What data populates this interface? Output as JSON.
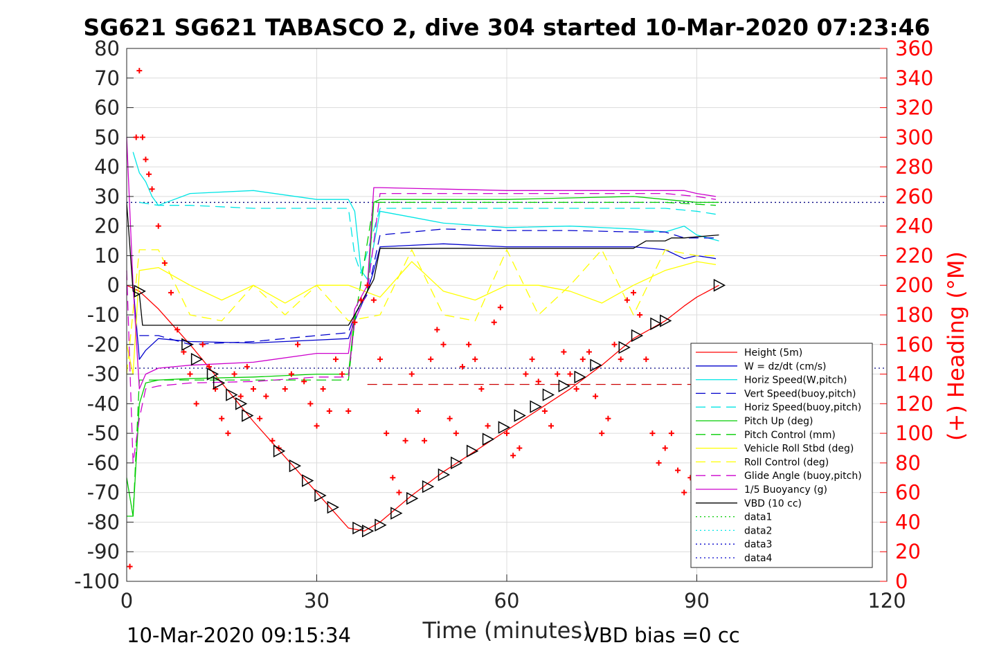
{
  "chart_data": {
    "type": "line",
    "title": "SG621 SG621 TABASCO 2, dive 304 started 10-Mar-2020 07:23:46",
    "xlabel": "Time (minutes)",
    "ylabel": "",
    "y2label": "(+) Heading (°M)",
    "xlim": [
      0,
      120
    ],
    "ylim": [
      -100,
      80
    ],
    "y2lim": [
      0,
      360
    ],
    "xticks": [
      "0",
      "30",
      "60",
      "90",
      "120"
    ],
    "yticks": [
      "80",
      "70",
      "60",
      "50",
      "40",
      "30",
      "20",
      "10",
      "0",
      "-10",
      "-20",
      "-30",
      "-40",
      "-50",
      "-60",
      "-70",
      "-80",
      "-90",
      "-100"
    ],
    "y2ticks": [
      "360",
      "340",
      "320",
      "300",
      "280",
      "260",
      "240",
      "220",
      "200",
      "180",
      "160",
      "140",
      "120",
      "100",
      "80",
      "60",
      "40",
      "20",
      "0"
    ],
    "grid": true,
    "legend_position": "bottom-right",
    "footer_left": "10-Mar-2020 09:15:34",
    "footer_right": "VBD bias =0 cc",
    "series": [
      {
        "name": "Height (5m)",
        "color": "#ff0000",
        "style": "solid",
        "x": [
          0,
          2,
          5,
          10,
          15,
          20,
          25,
          30,
          35,
          37.5,
          40,
          45,
          50,
          55,
          60,
          65,
          70,
          75,
          80,
          85,
          88,
          90,
          93.5
        ],
        "y": [
          0,
          -2,
          -8,
          -20,
          -33,
          -46,
          -58,
          -70,
          -82,
          -83,
          -80,
          -71,
          -63,
          -56,
          -49,
          -42,
          -35,
          -27,
          -18,
          -12,
          -7,
          -4,
          0
        ]
      },
      {
        "name": "W = dz/dt (cm/s)",
        "color": "#0000cc",
        "style": "solid",
        "x": [
          1,
          2,
          3,
          5,
          10,
          20,
          30,
          35,
          36,
          38,
          39,
          40,
          50,
          60,
          70,
          80,
          85,
          88,
          90,
          93
        ],
        "y": [
          0,
          -25,
          -22,
          -18,
          -19,
          -19.5,
          -18.5,
          -18,
          -12,
          -2,
          5,
          13,
          14,
          13,
          13,
          13,
          12,
          9,
          10,
          9
        ]
      },
      {
        "name": "Horiz Speed(W,pitch)",
        "color": "#00e5e5",
        "style": "solid",
        "x": [
          1,
          2,
          3,
          4,
          5,
          10,
          20,
          30,
          35,
          36,
          37,
          38,
          40,
          45,
          50,
          60,
          70,
          80,
          85,
          88,
          90,
          93.5
        ],
        "y": [
          45,
          38,
          35,
          30,
          27,
          31,
          32,
          29,
          29,
          25,
          5,
          2,
          25,
          23,
          21,
          19.5,
          20,
          19,
          18,
          20,
          17,
          15
        ]
      },
      {
        "name": "Vert Speed(buoy,pitch)",
        "color": "#0000cc",
        "style": "dashed",
        "x": [
          2,
          5,
          10,
          20,
          30,
          35,
          36,
          38,
          40,
          50,
          60,
          70,
          80,
          85,
          88,
          93
        ],
        "y": [
          -17,
          -17,
          -20,
          -19,
          -17,
          -16,
          -10,
          -3,
          17,
          19,
          18.5,
          18.5,
          18,
          18,
          16,
          16
        ]
      },
      {
        "name": "Horiz Speed(buoy,pitch)",
        "color": "#00e5e5",
        "style": "dashed",
        "x": [
          2,
          5,
          10,
          20,
          30,
          35,
          36,
          37,
          40,
          50,
          60,
          70,
          80,
          85,
          90,
          93
        ],
        "y": [
          28,
          27,
          27,
          26,
          26,
          26,
          10,
          4,
          26,
          26,
          26,
          26,
          26,
          26,
          25,
          24
        ]
      },
      {
        "name": "Pitch Up (deg)",
        "color": "#00cc00",
        "style": "solid",
        "x": [
          0,
          1,
          2,
          3,
          5,
          10,
          20,
          30,
          35,
          36,
          38,
          39,
          40,
          50,
          60,
          70,
          80,
          85,
          90,
          93.5
        ],
        "y": [
          -65,
          -78,
          -40,
          -33,
          -32,
          -31.5,
          -31,
          -30,
          -30,
          -10,
          -2,
          28,
          29,
          29,
          29,
          29.5,
          30,
          29,
          28,
          28
        ]
      },
      {
        "name": "Pitch Control (mm)",
        "color": "#00cc00",
        "style": "dashed",
        "x": [
          0,
          1,
          2,
          3,
          10,
          20,
          35,
          36,
          39,
          40,
          50,
          60,
          70,
          80,
          85,
          93
        ],
        "y": [
          -78,
          -78,
          -32,
          -32,
          -32,
          -32,
          -32,
          -12,
          28,
          28,
          28,
          28,
          28,
          28,
          28,
          27
        ]
      },
      {
        "name": "Vehicle Roll Stbd (deg)",
        "color": "#ffff00",
        "style": "solid",
        "x": [
          0,
          1,
          2,
          5,
          10,
          15,
          20,
          25,
          30,
          35,
          40,
          45,
          50,
          55,
          60,
          65,
          70,
          75,
          80,
          85,
          90,
          93
        ],
        "y": [
          -20,
          -30,
          5,
          6,
          0,
          -5,
          0,
          -6,
          0,
          0,
          -4,
          8,
          -2,
          -5,
          0,
          0,
          -2,
          -6,
          0,
          5,
          8,
          7
        ]
      },
      {
        "name": "Roll Control (deg)",
        "color": "#ffff00",
        "style": "dashed",
        "x": [
          0,
          2,
          5,
          10,
          15,
          20,
          25,
          30,
          35,
          40,
          45,
          50,
          55,
          60,
          65,
          70,
          75,
          80,
          85,
          90,
          93
        ],
        "y": [
          -30,
          12,
          12,
          -10,
          -12,
          0,
          -10,
          0,
          -12,
          -10,
          12,
          -10,
          -12,
          12,
          -10,
          0,
          12,
          -10,
          12,
          10,
          10
        ]
      },
      {
        "name": "Glide Angle (buoy,pitch)",
        "color": "#cc00cc",
        "style": "dashed",
        "x": [
          0,
          1,
          2,
          3,
          5,
          10,
          20,
          30,
          35,
          36,
          38,
          40,
          50,
          60,
          70,
          80,
          85,
          90,
          93
        ],
        "y": [
          5,
          -60,
          -45,
          -35,
          -34,
          -33,
          -32.5,
          -31,
          -31,
          -12,
          -2,
          31,
          31,
          31,
          31,
          31,
          31,
          30,
          29
        ]
      },
      {
        "name": "1/5 Buoyancy (g)",
        "color": "#cc00cc",
        "style": "solid",
        "x": [
          0,
          1,
          2,
          3,
          5,
          10,
          20,
          30,
          35,
          36,
          38,
          39,
          40,
          50,
          60,
          70,
          80,
          85,
          88,
          90,
          93
        ],
        "y": [
          50,
          0,
          -35,
          -30,
          -28,
          -27,
          -26,
          -23,
          -23,
          -8,
          0,
          33,
          33,
          32.5,
          32,
          32,
          32,
          32,
          32,
          31,
          30
        ]
      },
      {
        "name": "VBD (10 cc)",
        "color": "#000000",
        "style": "solid",
        "x": [
          0,
          1,
          2,
          2.5,
          5,
          20,
          35,
          36,
          38,
          39,
          40,
          50,
          60,
          70,
          80,
          82,
          85,
          86,
          88,
          93.5
        ],
        "y": [
          28,
          -2,
          -3,
          -13.5,
          -13.5,
          -13.5,
          -13.5,
          -10,
          -2,
          2,
          12.5,
          12.5,
          12.5,
          12.5,
          12.5,
          15,
          15,
          16,
          16,
          17
        ]
      },
      {
        "name": "data1",
        "color": "#00cc00",
        "style": "dotted",
        "x": [],
        "y": []
      },
      {
        "name": "data2",
        "color": "#00e5e5",
        "style": "dotted",
        "x": [],
        "y": []
      },
      {
        "name": "data3",
        "color": "#0000cc",
        "style": "dotted",
        "x": [],
        "y": []
      },
      {
        "name": "data4",
        "color": "#0000cc",
        "style": "dotted",
        "x": [],
        "y": []
      }
    ],
    "reference_lines": [
      {
        "color": "#000080",
        "style": "dotted",
        "y": 28
      },
      {
        "color": "#000080",
        "style": "dotted",
        "y": -28
      },
      {
        "color": "#cc0000",
        "style": "dashed",
        "y": -33.5,
        "x_from": 38,
        "x_to": 93
      }
    ],
    "heading_markers": {
      "color": "#ff0000",
      "marker": "plus",
      "axis": "right",
      "x": [
        0.5,
        1.5,
        2,
        2.5,
        3,
        3.5,
        4,
        5,
        6,
        7,
        8,
        9,
        10,
        11,
        12,
        13,
        14,
        15,
        16,
        17,
        18,
        19,
        20,
        21,
        22,
        23,
        24,
        25,
        26,
        27,
        28,
        29,
        30,
        31,
        32,
        33,
        34,
        35,
        36,
        37,
        38,
        39,
        40,
        41,
        42,
        43,
        44,
        45,
        46,
        47,
        48,
        49,
        50,
        51,
        52,
        53,
        54,
        55,
        56,
        57,
        58,
        59,
        60,
        61,
        62,
        63,
        64,
        65,
        66,
        67,
        68,
        69,
        70,
        71,
        72,
        73,
        74,
        75,
        76,
        77,
        78,
        79,
        80,
        81,
        82,
        83,
        84,
        85,
        86,
        87,
        88,
        89
      ],
      "y": [
        10,
        300,
        345,
        300,
        285,
        275,
        265,
        240,
        215,
        195,
        170,
        155,
        140,
        120,
        160,
        145,
        130,
        110,
        100,
        140,
        125,
        145,
        130,
        110,
        125,
        95,
        90,
        130,
        140,
        160,
        135,
        120,
        105,
        130,
        115,
        150,
        140,
        115,
        175,
        190,
        200,
        190,
        150,
        100,
        70,
        60,
        95,
        140,
        115,
        95,
        150,
        170,
        160,
        110,
        100,
        145,
        160,
        150,
        130,
        105,
        175,
        185,
        100,
        85,
        90,
        140,
        150,
        135,
        115,
        105,
        140,
        155,
        140,
        130,
        150,
        155,
        125,
        100,
        110,
        160,
        150,
        190,
        195,
        180,
        150,
        100,
        80,
        90,
        100,
        75,
        60,
        70
      ]
    },
    "depth_markers": {
      "color": "#000000",
      "marker": "triangle",
      "x": [
        2,
        9.5,
        11,
        13.5,
        14.5,
        16.5,
        18,
        19,
        24,
        26.5,
        28.5,
        30.5,
        32.5,
        36.5,
        38,
        40,
        42.5,
        45,
        47.5,
        50,
        52,
        54.5,
        57,
        59.5,
        62,
        64.5,
        66.5,
        69,
        71.5,
        74,
        78.5,
        80.5,
        83.5,
        85,
        93.5
      ],
      "y": [
        -2,
        -20,
        -25,
        -30,
        -33,
        -37,
        -40,
        -44,
        -56,
        -61,
        -66,
        -71,
        -75,
        -82,
        -83,
        -81,
        -77,
        -72,
        -68,
        -64,
        -60,
        -56,
        -52,
        -48,
        -44,
        -41,
        -37,
        -34,
        -31,
        -27,
        -21,
        -17,
        -13,
        -12,
        0
      ]
    }
  }
}
